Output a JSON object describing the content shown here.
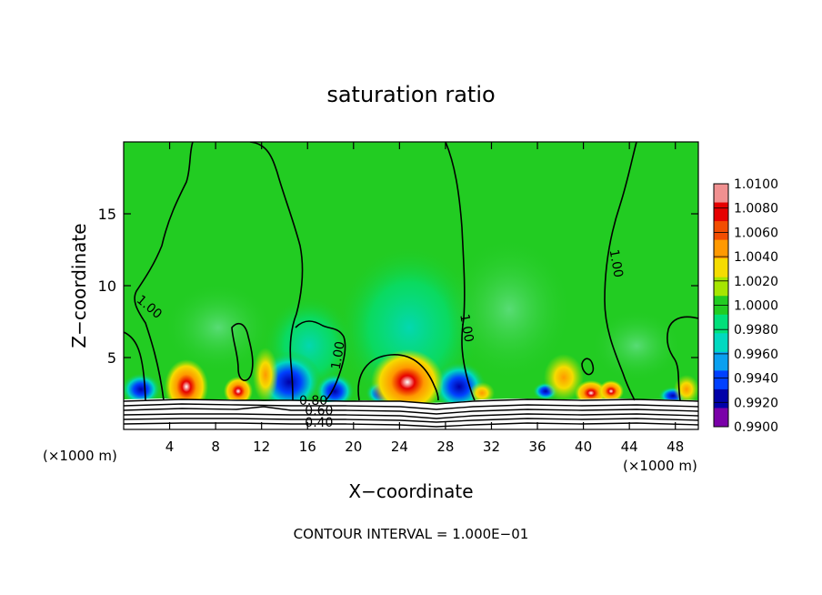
{
  "chart_data": {
    "type": "heatmap",
    "title": "saturation ratio",
    "xlabel": "X−coordinate",
    "ylabel": "Z−coordinate",
    "x_unit_left": "(×1000 m)",
    "x_unit_right": "(×1000 m)",
    "footer": "CONTOUR INTERVAL = 1.000E−01",
    "xlim": [
      0,
      50
    ],
    "ylim": [
      0,
      20
    ],
    "x_ticks": [
      4,
      8,
      12,
      16,
      20,
      24,
      28,
      32,
      36,
      40,
      44,
      48
    ],
    "y_ticks": [
      5,
      10,
      15
    ],
    "colorbar": {
      "range": [
        0.99,
        1.01
      ],
      "labels": [
        "1.0100",
        "1.0080",
        "1.0060",
        "1.0040",
        "1.0020",
        "1.0000",
        "0.9980",
        "0.9960",
        "0.9940",
        "0.9920",
        "0.9900"
      ],
      "colors": [
        "#f09090",
        "#e60000",
        "#f24d00",
        "#ff9900",
        "#f5dc00",
        "#a6e600",
        "#22cc22",
        "#00e07a",
        "#00d9c0",
        "#0aa0f0",
        "#0040ff",
        "#0000a8",
        "#7a00a8"
      ]
    },
    "contour_labels": [
      {
        "text": "1.00",
        "x": 2.0,
        "y": 8.3
      },
      {
        "text": "1.00",
        "x": 19.0,
        "y": 5.1
      },
      {
        "text": "1.00",
        "x": 29.5,
        "y": 7.0
      },
      {
        "text": "1.00",
        "x": 42.5,
        "y": 11.5
      },
      {
        "text": "0.80",
        "x": 16.5,
        "y": 1.7
      },
      {
        "text": "0.60",
        "x": 17.0,
        "y": 1.0
      },
      {
        "text": "0.40",
        "x": 17.0,
        "y": 0.2
      }
    ]
  }
}
